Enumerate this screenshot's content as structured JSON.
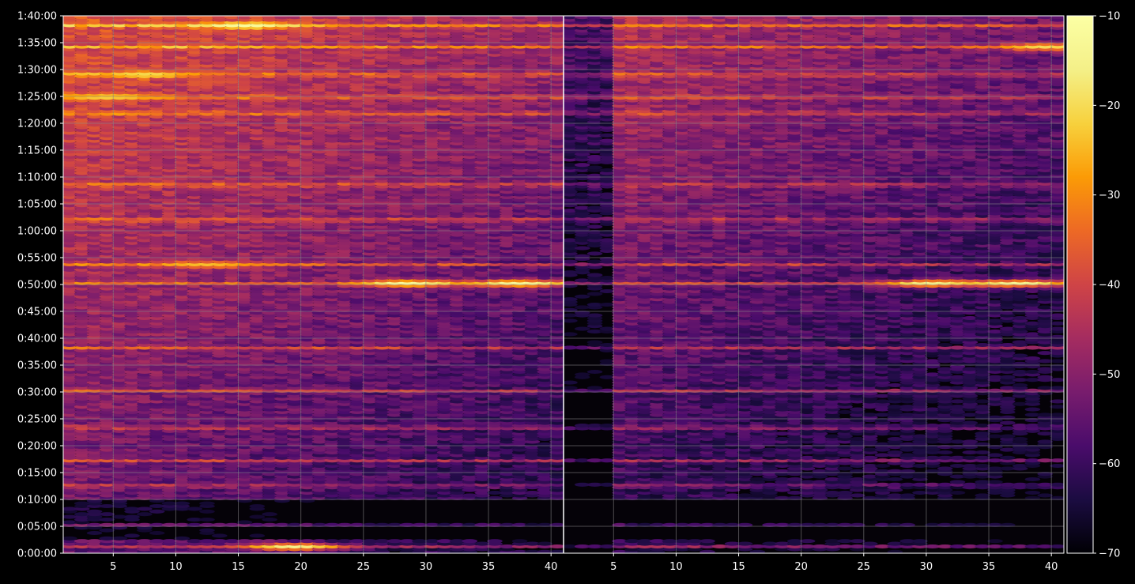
{
  "chart_data": {
    "type": "heatmap",
    "panels": [
      {
        "name": "",
        "x_range": [
          1,
          40
        ],
        "x_ticks": [
          "5",
          "10",
          "15",
          "20",
          "25",
          "30",
          "35",
          "40"
        ]
      },
      {
        "name": "",
        "x_range": [
          1,
          40
        ],
        "x_ticks": [
          "5",
          "10",
          "15",
          "20",
          "25",
          "30",
          "35",
          "40"
        ]
      }
    ],
    "y_range_seconds": [
      0,
      6000
    ],
    "y_ticks": [
      "0:00:00",
      "0:05:00",
      "0:10:00",
      "0:15:00",
      "0:20:00",
      "0:25:00",
      "0:30:00",
      "0:35:00",
      "0:40:00",
      "0:45:00",
      "0:50:00",
      "0:55:00",
      "1:00:00",
      "1:05:00",
      "1:10:00",
      "1:15:00",
      "1:20:00",
      "1:25:00",
      "1:30:00",
      "1:35:00",
      "1:40:00"
    ],
    "colorbar": {
      "colormap": "inferno",
      "range": [
        -70,
        -10
      ],
      "ticks": [
        "−70",
        "−60",
        "−50",
        "−40",
        "−30",
        "−20",
        "−10"
      ]
    },
    "grid": true,
    "bright_bands_y_seconds": [
      60,
      300,
      740,
      1020,
      1390,
      1800,
      2280,
      3000,
      3210,
      3710,
      4100,
      4900,
      5080,
      5330,
      5640,
      5880,
      6010
    ],
    "hot_spots": [
      {
        "panel": 0,
        "x": 15,
        "y_sec": 5880,
        "level": -12
      },
      {
        "panel": 0,
        "x": 7,
        "y_sec": 5330,
        "level": -20
      },
      {
        "panel": 0,
        "x": 4,
        "y_sec": 5080,
        "level": -22
      },
      {
        "panel": 0,
        "x": 12,
        "y_sec": 3210,
        "level": -24
      },
      {
        "panel": 0,
        "x": 28,
        "y_sec": 3000,
        "level": -12
      },
      {
        "panel": 0,
        "x": 37,
        "y_sec": 3000,
        "level": -12
      },
      {
        "panel": 0,
        "x": 19,
        "y_sec": 60,
        "level": -15
      },
      {
        "panel": 1,
        "x": 30,
        "y_sec": 3000,
        "level": -15
      },
      {
        "panel": 1,
        "x": 37,
        "y_sec": 3000,
        "level": -13
      },
      {
        "panel": 1,
        "x": 39,
        "y_sec": 5640,
        "level": -20
      }
    ],
    "background": "#000000",
    "grid_color": "#8a8a8a"
  }
}
